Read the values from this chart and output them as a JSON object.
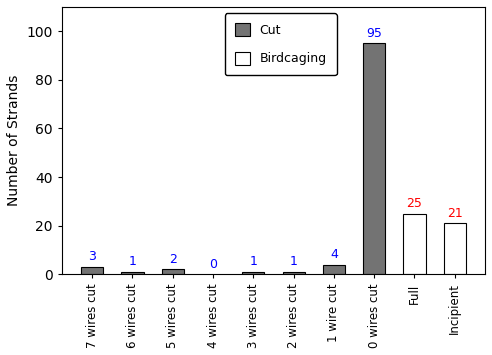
{
  "categories": [
    "7 wires cut",
    "6 wires cut",
    "5 wires cut",
    "4 wires cut",
    "3 wires cut",
    "2 wires cut",
    "1 wire cut",
    "0 wires cut",
    "Full",
    "Incipient"
  ],
  "cut_values": [
    3,
    1,
    2,
    0,
    1,
    1,
    4,
    95,
    0,
    0
  ],
  "birdcage_values": [
    0,
    0,
    0,
    0,
    0,
    0,
    0,
    0,
    25,
    21
  ],
  "cut_color": "#737373",
  "birdcage_facecolor": "#ffffff",
  "birdcage_edgecolor": "#aaaaaa",
  "ylabel": "Number of Strands",
  "ylim": [
    0,
    110
  ],
  "yticks": [
    0,
    20,
    40,
    60,
    80,
    100
  ],
  "legend_cut": "Cut",
  "legend_birdcage": "Birdcaging",
  "bar_width": 0.55,
  "label_fontsize": 9,
  "annot_color_cut": "#0000ff",
  "annot_color_birdcage": "#ff0000",
  "figsize": [
    4.92,
    3.55
  ],
  "dpi": 100,
  "background_color": "#ffffff"
}
